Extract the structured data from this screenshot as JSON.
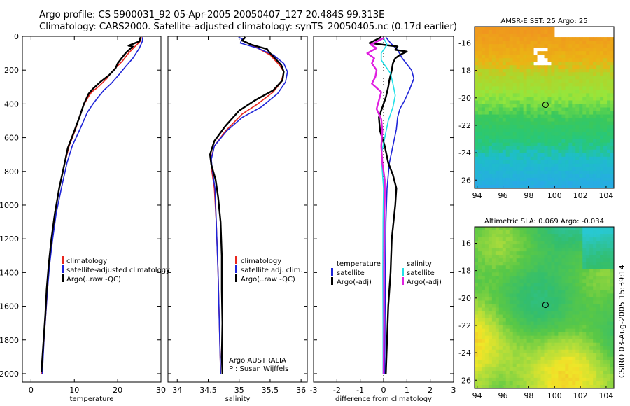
{
  "header": {
    "line1": "Argo profile: CS 5900031_92 05-Apr-2005 20050407_127 20.484S 99.313E",
    "line2": "Climatology: CARS2000. Satellite-adjusted climatology: synTS_20050405.nc (0.17d earlier)"
  },
  "credit": "CSIRO 03-Aug-2005 15:39:14",
  "colors": {
    "climatology": "#e8261e",
    "satellite": "#1e24d8",
    "argo": "#000000",
    "satellite_cyan": "#22e0e8",
    "salinity_argo": "#e020e0"
  },
  "chart_data": [
    {
      "type": "line",
      "xlabel": "temperature",
      "ylabel": "",
      "xlim": [
        -2,
        30
      ],
      "ylim": [
        2050,
        0
      ],
      "xticks": [
        0,
        10,
        20,
        30
      ],
      "yticks": [
        0,
        200,
        400,
        600,
        800,
        1000,
        1200,
        1400,
        1600,
        1800,
        2000
      ],
      "legend": [
        "climatology",
        "satellite-adjusted climatology",
        "Argo(..raw -QC)"
      ],
      "series": [
        {
          "name": "climatology",
          "color": "#e8261e",
          "points": [
            [
              25.5,
              5
            ],
            [
              25.2,
              30
            ],
            [
              24,
              60
            ],
            [
              22.5,
              100
            ],
            [
              21,
              150
            ],
            [
              19,
              200
            ],
            [
              17.5,
              250
            ],
            [
              15.5,
              300
            ],
            [
              14,
              330
            ],
            [
              13.2,
              360
            ],
            [
              12.3,
              400
            ],
            [
              11.5,
              450
            ],
            [
              10.3,
              550
            ],
            [
              8.8,
              650
            ],
            [
              7.8,
              750
            ],
            [
              6.5,
              900
            ],
            [
              5.5,
              1050
            ],
            [
              4.8,
              1200
            ],
            [
              4.2,
              1350
            ],
            [
              3.8,
              1500
            ],
            [
              3.4,
              1650
            ],
            [
              3,
              1800
            ],
            [
              2.5,
              2000
            ]
          ]
        },
        {
          "name": "satellite-adjusted climatology",
          "color": "#1e24d8",
          "points": [
            [
              25.8,
              5
            ],
            [
              25.7,
              30
            ],
            [
              25,
              70
            ],
            [
              23.5,
              130
            ],
            [
              21.8,
              180
            ],
            [
              20.2,
              230
            ],
            [
              18.5,
              280
            ],
            [
              16.8,
              320
            ],
            [
              15.5,
              360
            ],
            [
              14.3,
              400
            ],
            [
              13,
              450
            ],
            [
              11.3,
              550
            ],
            [
              9.5,
              650
            ],
            [
              8.3,
              750
            ],
            [
              7,
              900
            ],
            [
              5.8,
              1050
            ],
            [
              5,
              1200
            ],
            [
              4.3,
              1350
            ],
            [
              3.8,
              1500
            ],
            [
              3.4,
              1650
            ],
            [
              3,
              1800
            ],
            [
              2.6,
              2000
            ]
          ]
        },
        {
          "name": "Argo(..raw -QC)",
          "color": "#000000",
          "points": [
            [
              25.3,
              5
            ],
            [
              25,
              30
            ],
            [
              22.5,
              55
            ],
            [
              23.5,
              60
            ],
            [
              22,
              95
            ],
            [
              21.5,
              110
            ],
            [
              20,
              160
            ],
            [
              19.5,
              190
            ],
            [
              18,
              230
            ],
            [
              16,
              270
            ],
            [
              14.3,
              310
            ],
            [
              13.3,
              340
            ],
            [
              12.2,
              400
            ],
            [
              11.3,
              470
            ],
            [
              10,
              560
            ],
            [
              8.5,
              660
            ],
            [
              7.6,
              770
            ],
            [
              6.5,
              900
            ],
            [
              5.5,
              1050
            ],
            [
              4.7,
              1200
            ],
            [
              4.1,
              1350
            ],
            [
              3.6,
              1500
            ],
            [
              3.3,
              1650
            ],
            [
              2.9,
              1800
            ],
            [
              2.4,
              1990
            ]
          ]
        }
      ]
    },
    {
      "type": "line",
      "xlabel": "salinity",
      "xlim": [
        33.85,
        36.1
      ],
      "ylim": [
        2050,
        0
      ],
      "xticks": [
        34,
        34.5,
        35,
        35.5,
        36
      ],
      "legend": [
        "climatology",
        "satellite adj. clim.",
        "Argo(..raw -QC)"
      ],
      "annotation": [
        "Argo AUSTRALIA",
        "PI: Susan Wijffels"
      ],
      "series": [
        {
          "name": "climatology",
          "color": "#e8261e",
          "points": [
            [
              35.08,
              30
            ],
            [
              35.25,
              60
            ],
            [
              35.5,
              110
            ],
            [
              35.65,
              170
            ],
            [
              35.72,
              210
            ],
            [
              35.68,
              270
            ],
            [
              35.55,
              330
            ],
            [
              35.3,
              400
            ],
            [
              35.05,
              460
            ],
            [
              34.78,
              560
            ],
            [
              34.6,
              650
            ],
            [
              34.55,
              720
            ],
            [
              34.56,
              800
            ],
            [
              34.6,
              900
            ],
            [
              34.63,
              1100
            ],
            [
              34.66,
              1400
            ],
            [
              34.68,
              1700
            ],
            [
              34.7,
              2000
            ]
          ]
        },
        {
          "name": "satellite adj. clim.",
          "color": "#1e24d8",
          "points": [
            [
              34.99,
              5
            ],
            [
              35.05,
              15
            ],
            [
              35.02,
              40
            ],
            [
              35.3,
              70
            ],
            [
              35.55,
              110
            ],
            [
              35.72,
              160
            ],
            [
              35.78,
              210
            ],
            [
              35.75,
              270
            ],
            [
              35.62,
              340
            ],
            [
              35.35,
              420
            ],
            [
              35.05,
              480
            ],
            [
              34.8,
              560
            ],
            [
              34.6,
              650
            ],
            [
              34.55,
              730
            ],
            [
              34.57,
              800
            ],
            [
              34.61,
              900
            ],
            [
              34.63,
              1100
            ],
            [
              34.66,
              1400
            ],
            [
              34.68,
              1700
            ],
            [
              34.7,
              2000
            ]
          ]
        },
        {
          "name": "Argo(..raw -QC)",
          "color": "#000000",
          "points": [
            [
              35.1,
              5
            ],
            [
              35.05,
              25
            ],
            [
              35.2,
              50
            ],
            [
              35.3,
              60
            ],
            [
              35.45,
              75
            ],
            [
              35.5,
              100
            ],
            [
              35.58,
              130
            ],
            [
              35.68,
              170
            ],
            [
              35.72,
              210
            ],
            [
              35.7,
              260
            ],
            [
              35.55,
              320
            ],
            [
              35.25,
              380
            ],
            [
              35.0,
              440
            ],
            [
              34.78,
              530
            ],
            [
              34.6,
              620
            ],
            [
              34.53,
              700
            ],
            [
              34.55,
              760
            ],
            [
              34.62,
              850
            ],
            [
              34.66,
              950
            ],
            [
              34.7,
              1100
            ],
            [
              34.72,
              1300
            ],
            [
              34.72,
              1500
            ],
            [
              34.73,
              1700
            ],
            [
              34.72,
              1900
            ],
            [
              34.73,
              2000
            ]
          ]
        }
      ]
    },
    {
      "type": "line",
      "xlabel": "difference from climatology",
      "xlim": [
        -3,
        3
      ],
      "ylim": [
        2050,
        0
      ],
      "xticks": [
        -3,
        -2,
        -1,
        0,
        1,
        2,
        3
      ],
      "legend": [
        "temperature",
        "satellite",
        "Argo(-adj)",
        "salinity",
        "satellite",
        "Argo(-adj)"
      ],
      "series": [
        {
          "name": "satellite",
          "color": "#1e24d8",
          "points": [
            [
              0.1,
              5
            ],
            [
              0.3,
              40
            ],
            [
              0.6,
              80
            ],
            [
              0.8,
              130
            ],
            [
              1.2,
              200
            ],
            [
              1.3,
              250
            ],
            [
              1.1,
              320
            ],
            [
              0.9,
              380
            ],
            [
              0.7,
              430
            ],
            [
              0.6,
              480
            ],
            [
              0.55,
              550
            ],
            [
              0.4,
              650
            ],
            [
              0.25,
              750
            ],
            [
              0.15,
              900
            ],
            [
              0.1,
              1100
            ],
            [
              0.08,
              1400
            ],
            [
              0.06,
              1700
            ],
            [
              0.05,
              2000
            ]
          ]
        },
        {
          "name": "Argo(-adj)",
          "color": "#000000",
          "points": [
            [
              -0.1,
              5
            ],
            [
              -0.6,
              40
            ],
            [
              0.6,
              60
            ],
            [
              0.5,
              80
            ],
            [
              1.0,
              90
            ],
            [
              0.7,
              110
            ],
            [
              0.5,
              130
            ],
            [
              0.4,
              160
            ],
            [
              0.35,
              200
            ],
            [
              0.25,
              260
            ],
            [
              0.2,
              300
            ],
            [
              0.1,
              360
            ],
            [
              -0.05,
              420
            ],
            [
              -0.2,
              480
            ],
            [
              -0.15,
              560
            ],
            [
              0.05,
              650
            ],
            [
              0.2,
              750
            ],
            [
              0.4,
              820
            ],
            [
              0.55,
              900
            ],
            [
              0.5,
              1000
            ],
            [
              0.35,
              1200
            ],
            [
              0.3,
              1400
            ],
            [
              0.2,
              1600
            ],
            [
              0.15,
              1800
            ],
            [
              0.1,
              2000
            ]
          ]
        },
        {
          "name": "satellite",
          "color": "#22e0e8",
          "points": [
            [
              0,
              10
            ],
            [
              0.15,
              50
            ],
            [
              -0.1,
              100
            ],
            [
              -0.1,
              140
            ],
            [
              0.1,
              180
            ],
            [
              0.3,
              220
            ],
            [
              0.4,
              280
            ],
            [
              0.5,
              350
            ],
            [
              0.4,
              420
            ],
            [
              0.2,
              500
            ],
            [
              0.05,
              600
            ],
            [
              -0.1,
              700
            ],
            [
              -0.05,
              800
            ],
            [
              0,
              900
            ],
            [
              -0.02,
              1100
            ],
            [
              -0.03,
              1400
            ],
            [
              -0.02,
              1700
            ],
            [
              -0.02,
              2000
            ]
          ]
        },
        {
          "name": "Argo(-adj)",
          "color": "#e020e0",
          "points": [
            [
              0,
              10
            ],
            [
              -0.55,
              50
            ],
            [
              -0.3,
              70
            ],
            [
              -0.7,
              100
            ],
            [
              -0.4,
              130
            ],
            [
              -0.5,
              160
            ],
            [
              -0.3,
              200
            ],
            [
              -0.35,
              240
            ],
            [
              -0.5,
              280
            ],
            [
              -0.1,
              330
            ],
            [
              -0.2,
              380
            ],
            [
              -0.3,
              430
            ],
            [
              -0.1,
              490
            ],
            [
              -0.05,
              560
            ],
            [
              -0.1,
              650
            ],
            [
              -0.05,
              750
            ],
            [
              0.05,
              850
            ],
            [
              0.05,
              950
            ],
            [
              0.03,
              1100
            ],
            [
              0.02,
              1400
            ],
            [
              0.02,
              1700
            ],
            [
              0,
              2000
            ]
          ]
        }
      ]
    },
    {
      "type": "heatmap",
      "title": "AMSR-E SST: 25 Argo: 25",
      "xlim": [
        93.8,
        104.6
      ],
      "ylim": [
        -26.6,
        -14.8
      ],
      "xticks": [
        94,
        96,
        98,
        100,
        102,
        104
      ],
      "yticks": [
        -16,
        -18,
        -20,
        -22,
        -24,
        -26
      ],
      "marker": [
        99.3,
        -20.5
      ]
    },
    {
      "type": "heatmap",
      "title": "Altimetric SLA: 0.069 Argo: -0.034",
      "xlim": [
        93.8,
        104.6
      ],
      "ylim": [
        -26.6,
        -14.8
      ],
      "xticks": [
        94,
        96,
        98,
        100,
        102,
        104
      ],
      "yticks": [
        -16,
        -18,
        -20,
        -22,
        -24,
        -26
      ],
      "marker": [
        99.3,
        -20.5
      ]
    }
  ]
}
